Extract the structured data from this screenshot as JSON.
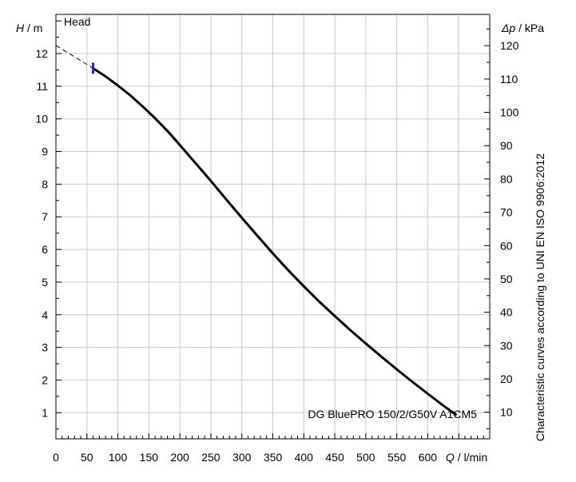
{
  "chart_data": {
    "type": "line",
    "title": "",
    "corner_label": "Head",
    "ylabel_left": {
      "symbol": "H",
      "unit": "m"
    },
    "ylabel_right": {
      "symbol": "Δp",
      "unit": "kPa"
    },
    "xlabel": {
      "symbol": "Q",
      "unit": "l/min"
    },
    "xlim": [
      0,
      700
    ],
    "ylim_left": [
      0.2,
      13.2
    ],
    "ylim_right": [
      2,
      129.4
    ],
    "x_ticks": [
      0,
      50,
      100,
      150,
      200,
      250,
      300,
      350,
      400,
      450,
      500,
      550,
      600
    ],
    "y_ticks_left": [
      1,
      2,
      3,
      4,
      5,
      6,
      7,
      8,
      9,
      10,
      11,
      12
    ],
    "y_ticks_right": [
      10,
      20,
      30,
      40,
      50,
      60,
      70,
      80,
      90,
      100,
      110,
      120
    ],
    "grid": true,
    "side_note": "Characteristic curves according to UNI EN ISO 9906:2012",
    "series": [
      {
        "name": "DG BluePRO 150/2/G50V A1CM5",
        "color": "#000000",
        "x": [
          60,
          80,
          100,
          120,
          140,
          160,
          180,
          200,
          225,
          250,
          275,
          300,
          325,
          350,
          375,
          400,
          425,
          450,
          475,
          500,
          525,
          550,
          575,
          600,
          625,
          645
        ],
        "y": [
          11.55,
          11.3,
          11.02,
          10.72,
          10.38,
          10.02,
          9.63,
          9.2,
          8.65,
          8.1,
          7.53,
          6.97,
          6.42,
          5.88,
          5.36,
          4.87,
          4.4,
          3.96,
          3.53,
          3.12,
          2.72,
          2.33,
          1.95,
          1.58,
          1.22,
          0.95
        ]
      }
    ],
    "extrapolation": {
      "style": "dashed",
      "x": [
        0,
        60
      ],
      "y": [
        12.25,
        11.55
      ]
    },
    "start_marker": {
      "x": 60,
      "y": 11.55,
      "color": "#2222cc"
    }
  }
}
